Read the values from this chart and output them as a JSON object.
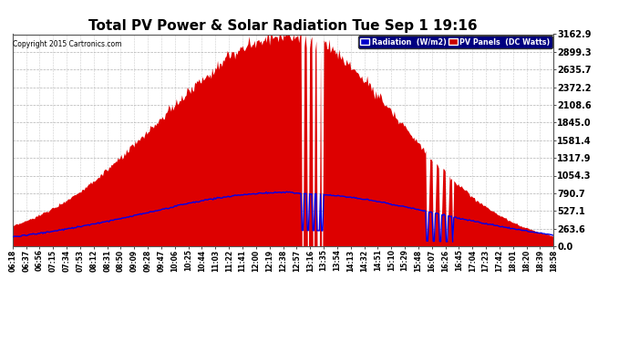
{
  "title": "Total PV Power & Solar Radiation Tue Sep 1 19:16",
  "copyright": "Copyright 2015 Cartronics.com",
  "background_color": "#ffffff",
  "plot_bg_color": "#ffffff",
  "grid_color": "#aaaaaa",
  "yticks": [
    0.0,
    263.6,
    527.1,
    790.7,
    1054.3,
    1317.9,
    1581.4,
    1845.0,
    2108.6,
    2372.2,
    2635.7,
    2899.3,
    3162.9
  ],
  "ymax": 3162.9,
  "legend_radiation_label": "Radiation  (W/m2)",
  "legend_pv_label": "PV Panels  (DC Watts)",
  "legend_radiation_bg": "#0000cc",
  "legend_pv_bg": "#cc0000",
  "pv_fill_color": "#dd0000",
  "radiation_line_color": "#0000ee",
  "title_fontsize": 11,
  "tick_fontsize": 5.5,
  "ytick_fontsize": 7.0,
  "figwidth": 6.9,
  "figheight": 3.75,
  "dpi": 100
}
